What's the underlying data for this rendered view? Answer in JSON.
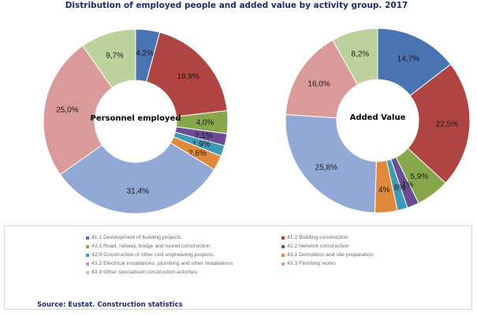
{
  "title": "Distribution of employed people and added value by activity group. 2017",
  "source": "Source: Eustat. Construction statistics",
  "colors": [
    "#4a73b1",
    "#b04442",
    "#86a84b",
    "#6b4c93",
    "#3f9ab5",
    "#e0883b",
    "#92a9d6",
    "#d99a99",
    "#bdd19c"
  ],
  "legend": [
    "41.1 Development of building projects",
    "41.2 Building construction",
    "42.1 Road, railway, bridge and tunnel construction",
    "42.2 Network construction",
    "42.9 Construction of other civil engineering projects",
    "43.1 Demolition and site preparation",
    "43.2 Electrical installations, plumbing and other installations",
    "43.3 Finishing works",
    "43.9 Other specialised construction activities"
  ],
  "chart_data": [
    {
      "type": "pie",
      "center_label": "Personnel employed",
      "categories": [
        "41.1",
        "41.2",
        "42.1",
        "42.2",
        "42.9",
        "43.1",
        "43.2",
        "43.3",
        "43.9"
      ],
      "values": [
        4.2,
        18.9,
        4.0,
        2.1,
        1.9,
        2.6,
        31.4,
        25.0,
        9.7
      ],
      "labels": [
        "4,2%",
        "18,9%",
        "4,0%",
        "2,1%",
        "1,9%",
        "2,6%",
        "31,4%",
        "25,0%",
        "9,7%"
      ]
    },
    {
      "type": "pie",
      "center_label": "Added Value",
      "categories": [
        "41.1",
        "41.2",
        "42.1",
        "42.2",
        "42.9",
        "43.1",
        "43.2",
        "43.3",
        "43.9"
      ],
      "values": [
        14.7,
        22.5,
        5.9,
        2.1,
        1.8,
        4.0,
        25.8,
        16.0,
        8.2
      ],
      "labels": [
        "14,7%",
        "22,5%",
        "5,9%",
        "2,1%",
        "1,8%",
        "4%",
        "25,8%",
        "16,0%",
        "8,2%"
      ]
    }
  ]
}
